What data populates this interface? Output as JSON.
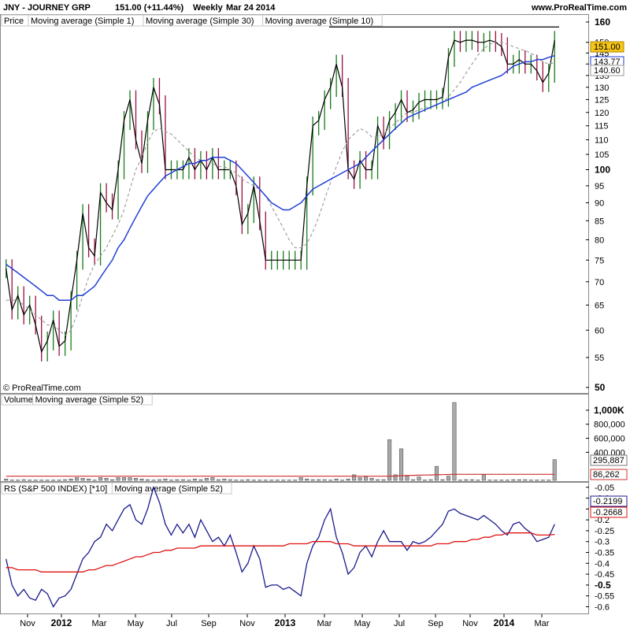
{
  "header": {
    "symbol_line": "JNY - JOURNEY GRP",
    "price_change": "151.00 (+11.44%)",
    "period": "Weekly",
    "date": "Mar 24 2014",
    "website": "www.ProRealTime.com"
  },
  "copyright": "© ProRealTime.com",
  "colors": {
    "up": "#1a7a1a",
    "down": "#9a1040",
    "ma1": "#000000",
    "ma30": "#1f3fd6",
    "ma10": "#9a9a9a",
    "volume_bar": "#aaaaaa",
    "volume_ma": "#d03030",
    "rs_line": "#1a1a8c",
    "rs_ma": "#e01010",
    "last_price_bg": "#f5c518"
  },
  "chart_data": [
    {
      "type": "line",
      "panel": "price",
      "legend": [
        "Price",
        "Moving average (Simple 1)",
        "Moving average (Simple 30)",
        "Moving average (Simple 10)"
      ],
      "y_ticks": [
        "160",
        "150",
        "145",
        "140",
        "135",
        "130",
        "125",
        "120",
        "115",
        "110",
        "105",
        "100",
        "95",
        "90",
        "85",
        "80",
        "75",
        "70",
        "65",
        "60",
        "55",
        "50"
      ],
      "y_major_ticks": [
        "160",
        "100",
        "50"
      ],
      "ylim": [
        50,
        160
      ],
      "y_scale": "log",
      "price_tags": [
        "151.00",
        "143.77",
        "140.60"
      ],
      "x_ticks": [
        "Nov",
        "2012",
        "Mar",
        "May",
        "Jul",
        "Sep",
        "Nov",
        "2013",
        "Mar",
        "May",
        "Jul",
        "Sep",
        "Nov",
        "2014",
        "Mar"
      ],
      "x_major_ticks": [
        "2012",
        "2013",
        "2014"
      ],
      "series": [
        {
          "name": "Moving average (Simple 1)",
          "values": [
            73,
            64,
            67,
            63,
            65,
            61,
            56,
            58,
            62,
            57,
            58,
            66,
            75,
            87,
            78,
            76,
            93,
            90,
            88,
            100,
            117,
            125,
            110,
            102,
            117,
            130,
            123,
            100,
            100,
            100,
            100,
            104,
            100,
            103,
            100,
            104,
            100,
            100,
            100,
            95,
            84,
            87,
            95,
            85,
            75,
            75,
            75,
            75,
            75,
            75,
            75,
            95,
            115,
            117,
            125,
            130,
            140,
            130,
            100,
            97,
            103,
            100,
            100,
            115,
            110,
            117,
            120,
            125,
            120,
            121,
            124,
            125,
            125,
            125,
            126,
            143,
            151,
            150,
            151,
            151,
            150,
            150,
            151,
            150,
            148,
            140,
            140,
            142,
            140,
            140,
            137,
            132,
            136,
            151
          ]
        },
        {
          "name": "Moving average (Simple 10)",
          "values": [
            66,
            66,
            66,
            65,
            64,
            63,
            62,
            61,
            61,
            60,
            59,
            60,
            63,
            67,
            71,
            74,
            76,
            78,
            81,
            84,
            88,
            94,
            100,
            104,
            109,
            113,
            114,
            113,
            112,
            110,
            108,
            106,
            104,
            103,
            103,
            102,
            101,
            101,
            100,
            99,
            97,
            96,
            95,
            94,
            92,
            89,
            86,
            83,
            80,
            78,
            78,
            79,
            82,
            86,
            91,
            96,
            101,
            106,
            110,
            112,
            114,
            113,
            111,
            111,
            112,
            114,
            116,
            118,
            120,
            120,
            121,
            122,
            122,
            123,
            124,
            126,
            129,
            132,
            136,
            140,
            144,
            147,
            149,
            150,
            150,
            149,
            148,
            147,
            146,
            145,
            143,
            141,
            140,
            140.6
          ]
        },
        {
          "name": "Moving average (Simple 30)",
          "values": [
            74,
            73,
            72,
            71,
            70,
            69,
            68,
            67,
            67,
            66,
            66,
            66,
            67,
            67,
            68,
            69,
            71,
            73,
            75,
            78,
            80,
            83,
            86,
            89,
            92,
            94,
            96,
            98,
            99,
            100,
            101,
            102,
            102,
            103,
            103,
            104,
            104,
            104,
            103,
            102,
            100,
            98,
            96,
            94,
            92,
            90,
            89,
            88,
            88,
            89,
            90,
            92,
            94,
            95,
            96,
            97,
            98,
            99,
            100,
            101,
            102,
            104,
            106,
            108,
            110,
            112,
            114,
            116,
            118,
            119,
            120,
            121,
            122,
            123,
            124,
            125,
            126,
            127,
            128,
            130,
            131,
            132,
            133,
            134,
            135,
            137,
            139,
            140,
            141,
            141,
            142,
            142,
            143,
            143.77
          ]
        }
      ]
    },
    {
      "type": "bar",
      "panel": "volume",
      "legend": [
        "Volume",
        "Moving average (Simple 52)"
      ],
      "y_ticks": [
        "1,000K",
        "800,000",
        "600,000",
        "400,000"
      ],
      "y_major_ticks": [
        "1,000K"
      ],
      "ylim": [
        0,
        1100000
      ],
      "value_tags": [
        "295,887",
        "86,262"
      ],
      "values": [
        20000,
        5000,
        5000,
        10000,
        5000,
        5000,
        5000,
        5000,
        5000,
        5000,
        10000,
        20000,
        40000,
        30000,
        20000,
        5000,
        40000,
        30000,
        10000,
        40000,
        40000,
        40000,
        30000,
        20000,
        10000,
        5000,
        10000,
        20000,
        5000,
        10000,
        10000,
        5000,
        20000,
        10000,
        30000,
        40000,
        10000,
        20000,
        10000,
        5000,
        5000,
        10000,
        5000,
        5000,
        5000,
        5000,
        5000,
        5000,
        5000,
        5000,
        40000,
        20000,
        10000,
        10000,
        10000,
        5000,
        20000,
        5000,
        20000,
        80000,
        40000,
        50000,
        30000,
        10000,
        10000,
        580000,
        80000,
        450000,
        60000,
        10000,
        50000,
        5000,
        10000,
        200000,
        10000,
        60000,
        1110000,
        5000,
        10000,
        10000,
        5000,
        80000,
        5000,
        5000,
        5000,
        5000,
        10000,
        10000,
        10000,
        5000,
        5000,
        5000,
        5000,
        295887
      ],
      "ma_values": [
        60000,
        60000,
        60000,
        60000,
        60000,
        60000,
        60000,
        60000,
        60000,
        60000,
        60000,
        60000,
        60000,
        60000,
        60000,
        60000,
        60000,
        60000,
        60000,
        60000,
        60000,
        60000,
        60000,
        60000,
        60000,
        60000,
        60000,
        60000,
        60000,
        60000,
        60000,
        60000,
        60000,
        60000,
        60000,
        60000,
        60000,
        60000,
        60000,
        60000,
        60000,
        60000,
        60000,
        60000,
        60000,
        60000,
        60000,
        60000,
        60000,
        60000,
        60000,
        60000,
        60000,
        60000,
        60000,
        60000,
        60000,
        60000,
        60000,
        60000,
        60000,
        60000,
        60000,
        60000,
        60000,
        60000,
        62000,
        66000,
        70000,
        72000,
        74000,
        76000,
        78000,
        80000,
        82000,
        84000,
        86000,
        86262,
        86262,
        86262,
        86262,
        86262,
        86262,
        86262,
        86262,
        86262,
        86262,
        86262,
        86262,
        86262,
        86262,
        86262,
        86262,
        86262
      ]
    },
    {
      "type": "line",
      "panel": "rs",
      "legend": [
        "RS (S&P 500 INDEX) [*10]",
        "Moving average (Simple 52)"
      ],
      "y_ticks": [
        "-0.05",
        "-0.1",
        "-0.15",
        "-0.2",
        "-0.25",
        "-0.3",
        "-0.35",
        "-0.4",
        "-0.45",
        "-0.5",
        "-0.55",
        "-0.6"
      ],
      "y_major_ticks": [
        "-0.5"
      ],
      "ylim": [
        -0.62,
        -0.04
      ],
      "value_tags": [
        "-0.2199",
        "-0.2668"
      ],
      "series": [
        {
          "name": "RS (S&P 500 INDEX) [*10]",
          "values": [
            -0.38,
            -0.5,
            -0.55,
            -0.52,
            -0.56,
            -0.57,
            -0.52,
            -0.54,
            -0.6,
            -0.56,
            -0.55,
            -0.52,
            -0.45,
            -0.38,
            -0.35,
            -0.3,
            -0.28,
            -0.22,
            -0.25,
            -0.2,
            -0.15,
            -0.13,
            -0.2,
            -0.22,
            -0.15,
            -0.05,
            -0.12,
            -0.22,
            -0.27,
            -0.22,
            -0.26,
            -0.22,
            -0.28,
            -0.2,
            -0.25,
            -0.3,
            -0.28,
            -0.32,
            -0.27,
            -0.35,
            -0.44,
            -0.4,
            -0.32,
            -0.38,
            -0.51,
            -0.5,
            -0.5,
            -0.52,
            -0.51,
            -0.53,
            -0.55,
            -0.4,
            -0.32,
            -0.28,
            -0.2,
            -0.15,
            -0.28,
            -0.35,
            -0.45,
            -0.42,
            -0.35,
            -0.32,
            -0.37,
            -0.3,
            -0.25,
            -0.3,
            -0.3,
            -0.3,
            -0.34,
            -0.3,
            -0.31,
            -0.3,
            -0.28,
            -0.25,
            -0.22,
            -0.16,
            -0.15,
            -0.17,
            -0.18,
            -0.19,
            -0.2,
            -0.18,
            -0.2,
            -0.22,
            -0.25,
            -0.27,
            -0.22,
            -0.21,
            -0.24,
            -0.26,
            -0.3,
            -0.29,
            -0.28,
            -0.2199
          ]
        },
        {
          "name": "Moving average (Simple 52)",
          "values": [
            -0.42,
            -0.42,
            -0.43,
            -0.43,
            -0.43,
            -0.43,
            -0.44,
            -0.44,
            -0.44,
            -0.44,
            -0.44,
            -0.44,
            -0.44,
            -0.44,
            -0.43,
            -0.43,
            -0.42,
            -0.41,
            -0.41,
            -0.4,
            -0.39,
            -0.38,
            -0.37,
            -0.37,
            -0.36,
            -0.35,
            -0.35,
            -0.34,
            -0.34,
            -0.33,
            -0.33,
            -0.33,
            -0.33,
            -0.32,
            -0.32,
            -0.32,
            -0.32,
            -0.32,
            -0.32,
            -0.32,
            -0.32,
            -0.32,
            -0.32,
            -0.32,
            -0.32,
            -0.32,
            -0.32,
            -0.32,
            -0.31,
            -0.31,
            -0.31,
            -0.31,
            -0.3,
            -0.3,
            -0.3,
            -0.3,
            -0.31,
            -0.31,
            -0.31,
            -0.32,
            -0.32,
            -0.32,
            -0.32,
            -0.32,
            -0.32,
            -0.32,
            -0.32,
            -0.32,
            -0.32,
            -0.32,
            -0.32,
            -0.32,
            -0.32,
            -0.31,
            -0.31,
            -0.31,
            -0.3,
            -0.3,
            -0.3,
            -0.29,
            -0.29,
            -0.28,
            -0.28,
            -0.27,
            -0.27,
            -0.26,
            -0.26,
            -0.26,
            -0.26,
            -0.26,
            -0.27,
            -0.27,
            -0.27,
            -0.2668
          ]
        }
      ]
    }
  ]
}
